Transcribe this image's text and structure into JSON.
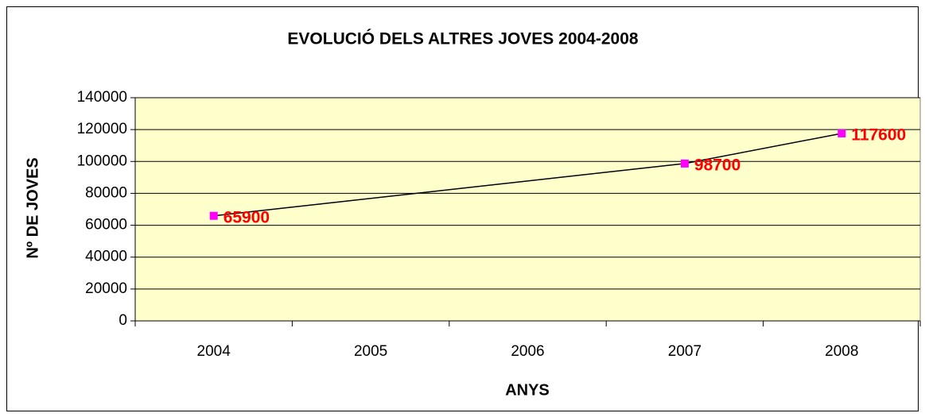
{
  "chart_data": {
    "type": "line",
    "title": "EVOLUCIÓ DELS ALTRES JOVES 2004-2008",
    "x_label": "ANYS",
    "y_label": "Nº DE JOVES",
    "x": [
      2004,
      2007,
      2008
    ],
    "values": [
      65900,
      98700,
      117600
    ],
    "xlim": [
      2003.5,
      2008.5
    ],
    "xticks": [
      2004,
      2005,
      2006,
      2007,
      2008
    ],
    "ylim": [
      0,
      140000
    ],
    "yticks": [
      0,
      20000,
      40000,
      60000,
      80000,
      100000,
      120000,
      140000
    ],
    "grid": true,
    "line_color": "#000000",
    "marker_color": "#ff00ff",
    "label_color": "#ff0000",
    "plot_background": "#ffffcc"
  }
}
